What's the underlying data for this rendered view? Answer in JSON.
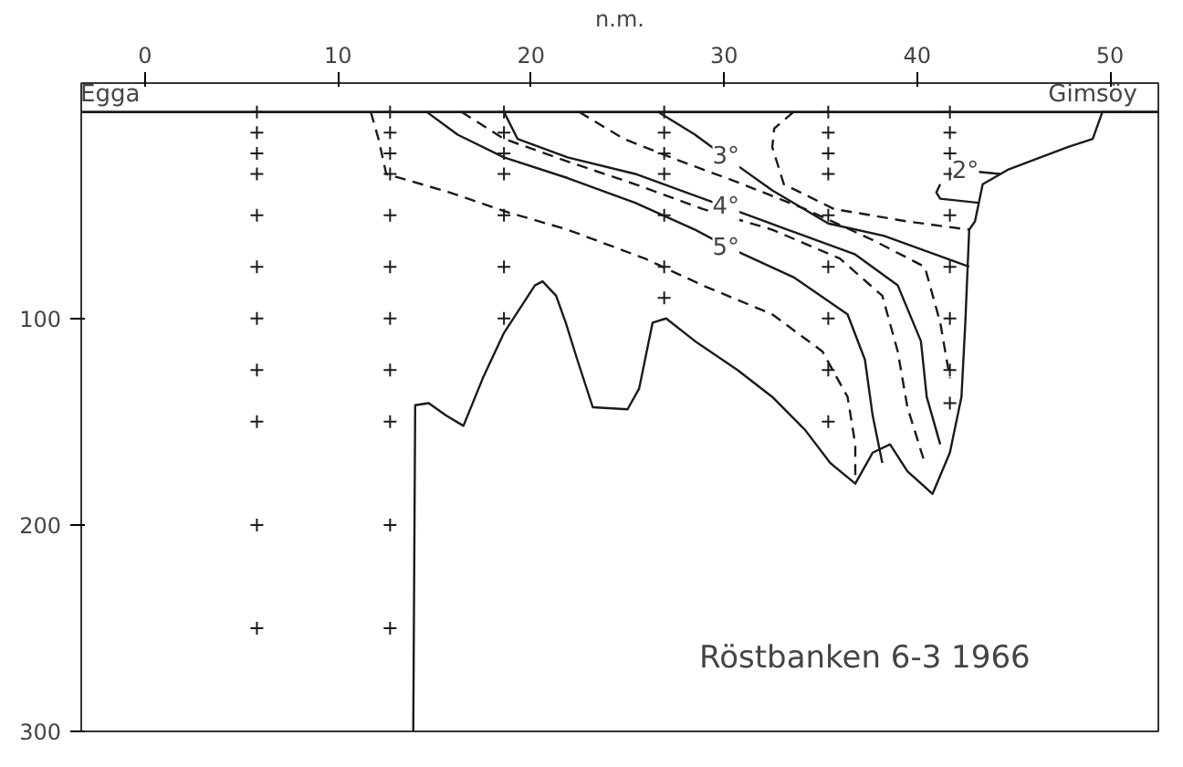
{
  "chart_data": {
    "type": "line",
    "xlabel": "n.m.",
    "xlim": [
      -3.3,
      52.5
    ],
    "ylim": [
      300,
      -14
    ],
    "xticks": [
      0,
      10,
      20,
      30,
      40,
      50
    ],
    "yticks": [
      100,
      200,
      300
    ],
    "grid": false,
    "series": [
      {
        "type": "line",
        "line_style": "solid",
        "color": "#1a1a1a",
        "x": [
          13.9,
          14.0,
          14.7,
          15.6,
          16.5,
          17.5,
          18.6,
          20.2,
          20.6,
          21.3,
          21.8,
          22.4,
          23.2,
          25.0,
          25.6,
          26.3,
          27.0,
          28.5,
          30.7,
          32.5,
          34.2,
          35.5,
          36.8,
          37.7,
          38.6,
          39.5,
          40.8,
          41.7,
          42.3,
          42.5,
          42.7,
          43.0,
          43.4,
          44.7,
          47.8,
          49.1,
          49.6,
          52.5
        ],
        "values": [
          300,
          142,
          141,
          147,
          152,
          129,
          107,
          84,
          82,
          89,
          102,
          120,
          143,
          144,
          134,
          102,
          100,
          111,
          125,
          138,
          154,
          170,
          180,
          165,
          161,
          174,
          185,
          165,
          138,
          102,
          57,
          53,
          35,
          28,
          17,
          13,
          0,
          0
        ]
      },
      {
        "type": "line",
        "line_style": "dashed",
        "color": "#1a1a1a",
        "x": [
          11.7,
          12.1,
          12.5,
          15.8,
          18.6,
          21.9,
          25.9,
          28.9,
          32.5,
          35.1,
          36.4,
          36.8,
          36.8
        ],
        "values": [
          0,
          13,
          30,
          39,
          48,
          57,
          71,
          84,
          98,
          116,
          138,
          161,
          178
        ]
      },
      {
        "type": "line",
        "line_style": "solid",
        "color": "#1a1a1a",
        "x": [
          14.6,
          16.2,
          18.6,
          21.9,
          25.4,
          28.5,
          30.1,
          33.6,
          36.4,
          37.3,
          37.7,
          38.2
        ],
        "values": [
          0,
          11,
          22,
          32,
          44,
          57,
          65,
          80,
          98,
          120,
          147,
          170
        ]
      },
      {
        "type": "line",
        "line_style": "dashed",
        "color": "#1a1a1a",
        "x": [
          16.4,
          18.6,
          21.9,
          25.4,
          28.9,
          32.5,
          36.0,
          38.2,
          39.0,
          39.5,
          40.4
        ],
        "values": [
          0,
          13,
          24,
          35,
          47,
          57,
          71,
          89,
          116,
          143,
          170
        ]
      },
      {
        "type": "line",
        "line_style": "solid",
        "color": "#1a1a1a",
        "x": [
          18.6,
          19.3,
          21.9,
          25.4,
          30.1,
          33.3,
          36.8,
          39.0,
          40.2,
          40.5,
          41.2
        ],
        "values": [
          0,
          13,
          22,
          30,
          46,
          57,
          69,
          84,
          111,
          138,
          161
        ]
      },
      {
        "type": "line",
        "line_style": "dashed",
        "color": "#1a1a1a",
        "x": [
          22.5,
          24.8,
          27.8,
          30.7,
          34.2,
          37.7,
          40.4,
          41.2,
          41.7
        ],
        "values": [
          0,
          13,
          24,
          34,
          47,
          62,
          75,
          102,
          129
        ]
      },
      {
        "type": "line",
        "line_style": "solid",
        "color": "#1a1a1a",
        "x": [
          26.6,
          28.5,
          30.1,
          32.5,
          35.4,
          38.3,
          42.7
        ],
        "values": [
          0,
          11,
          22,
          38,
          54,
          60,
          75
        ]
      },
      {
        "type": "line",
        "line_style": "dashed",
        "color": "#1a1a1a",
        "x": [
          33.6,
          32.6,
          32.5,
          33.1,
          35.7,
          39.5,
          42.7
        ],
        "values": [
          0,
          8,
          17,
          35,
          47,
          53,
          57
        ]
      },
      {
        "type": "line",
        "line_style": "solid",
        "color": "#1a1a1a",
        "x": [
          44.3,
          43.2,
          42.1,
          41.2,
          41.0,
          41.2,
          43.2
        ],
        "values": [
          30,
          29,
          null,
          35,
          39,
          42,
          44
        ]
      },
      {
        "type": "scatter",
        "marker": "cross",
        "color": "#1a1a1a",
        "x": [
          5.8,
          5.8,
          5.8,
          5.8,
          5.8,
          5.8,
          5.8,
          5.8,
          5.8,
          5.8,
          5.8,
          12.7,
          12.7,
          12.7,
          12.7,
          12.7,
          12.7,
          12.7,
          12.7,
          12.7,
          12.7,
          12.7,
          18.6,
          18.6,
          18.6,
          18.6,
          18.6,
          18.6,
          18.6,
          26.9,
          26.9,
          26.9,
          26.9,
          26.9,
          26.9,
          26.9,
          35.4,
          35.4,
          35.4,
          35.4,
          35.4,
          35.4,
          35.4,
          35.4,
          35.4,
          41.7,
          41.7,
          41.7,
          41.7,
          41.7,
          41.7,
          41.7,
          41.7,
          41.7
        ],
        "values": [
          0,
          10,
          20,
          30,
          50,
          75,
          100,
          125,
          150,
          200,
          250,
          0,
          10,
          20,
          30,
          50,
          75,
          100,
          125,
          150,
          200,
          250,
          0,
          10,
          20,
          30,
          50,
          75,
          100,
          0,
          10,
          20,
          30,
          50,
          75,
          90,
          0,
          10,
          20,
          30,
          50,
          75,
          100,
          125,
          150,
          0,
          10,
          20,
          30,
          50,
          75,
          100,
          125,
          141
        ]
      }
    ],
    "ref_lines": [
      {
        "axis": "y",
        "value": 0,
        "color": "#1a1a1a",
        "line_style": "solid"
      }
    ],
    "annotations": [
      {
        "text": "3°",
        "x": 30.1,
        "y": 22
      },
      {
        "text": "4°",
        "x": 30.1,
        "y": 46
      },
      {
        "text": "5°",
        "x": 30.1,
        "y": 66
      },
      {
        "text": "2°",
        "x": 42.5,
        "y": 29
      },
      {
        "text": "Egga",
        "x": -1.8,
        "y": 0
      },
      {
        "text": "Gimsöy",
        "x": 49.1,
        "y": 0
      },
      "Röstbanken   6-3   1966"
    ]
  }
}
